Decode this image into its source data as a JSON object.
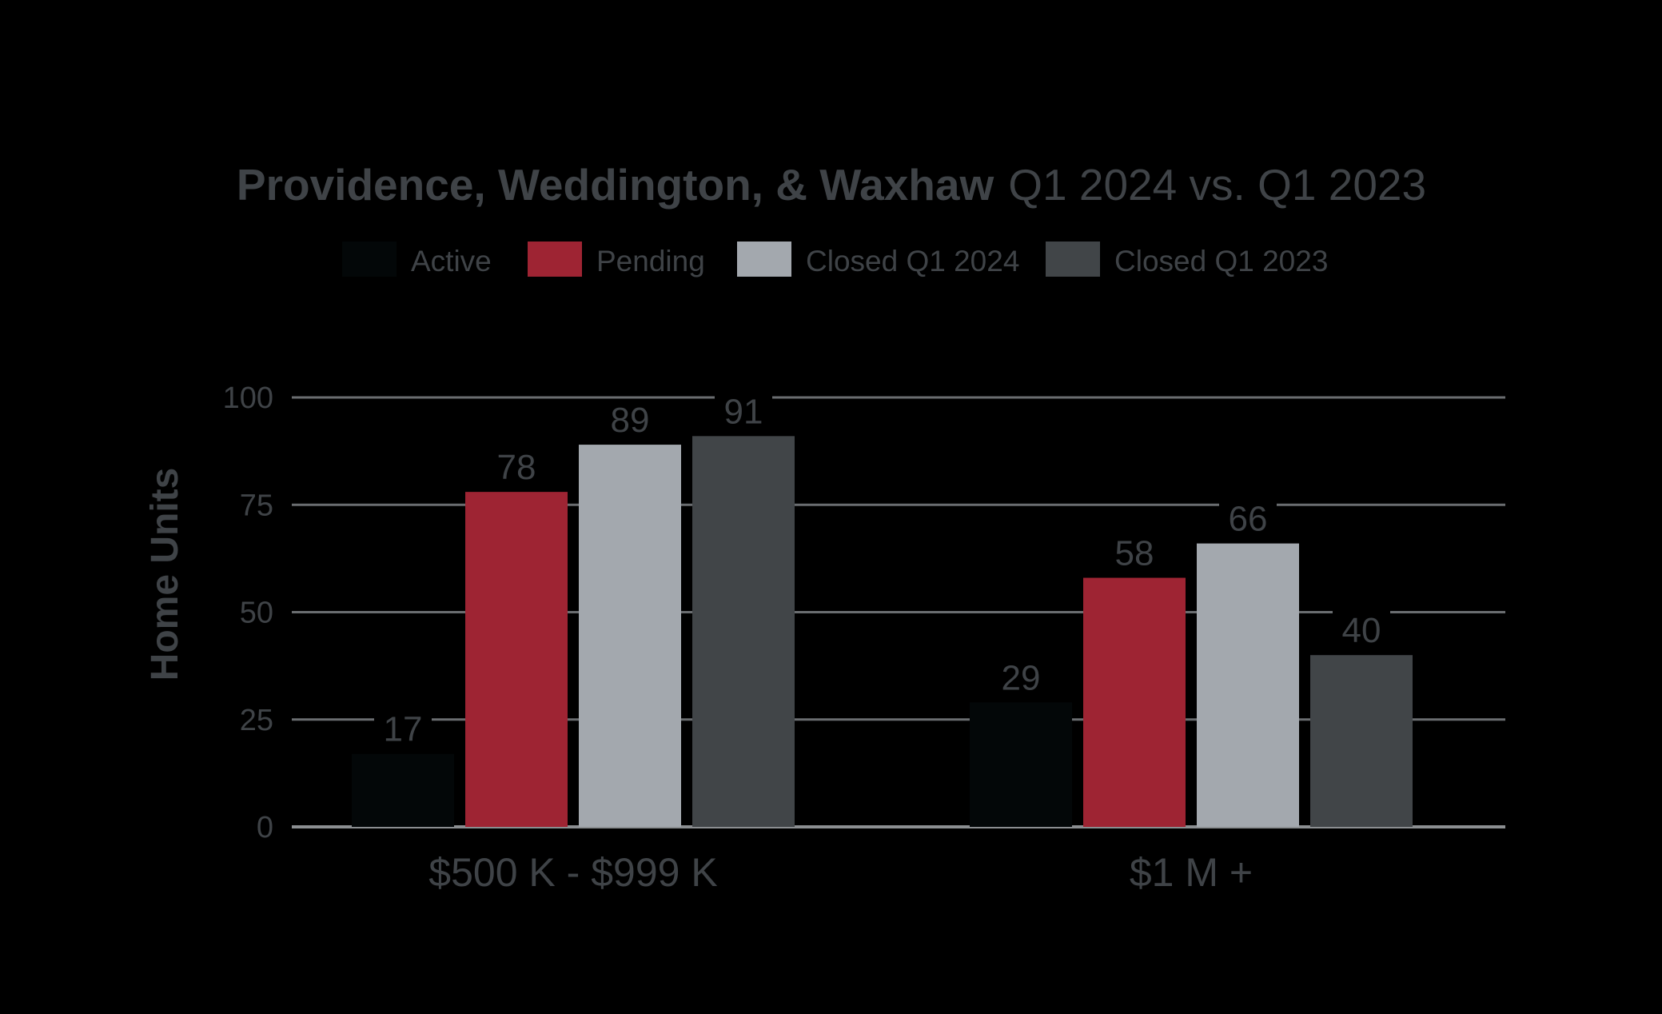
{
  "colors": {
    "background": "#000000",
    "text": "#3f4347",
    "grid": "#6a6d70",
    "axis": "#8b8e91",
    "active": "#030708",
    "pending": "#9e2433",
    "closed_2024": "#a3a8ae",
    "closed_2023": "#414548"
  },
  "chart_data": {
    "type": "bar",
    "title_bold": "Providence, Weddington, & Waxhaw",
    "title_light": "Q1 2024 vs. Q1 2023",
    "ylabel": "Home Units",
    "xlabel": "",
    "ylim": [
      0,
      100
    ],
    "yticks": [
      0,
      25,
      50,
      75,
      100
    ],
    "grid": true,
    "legend_position": "top",
    "categories": [
      "$500 K - $999 K",
      "$1 M +"
    ],
    "series": [
      {
        "name": "Active",
        "values": [
          17,
          29
        ],
        "color": "#030708"
      },
      {
        "name": "Pending",
        "values": [
          78,
          58
        ],
        "color": "#9e2433"
      },
      {
        "name": "Closed Q1 2024",
        "values": [
          89,
          66
        ],
        "color": "#a3a8ae"
      },
      {
        "name": "Closed Q1 2023",
        "values": [
          91,
          40
        ],
        "color": "#414548"
      }
    ]
  }
}
